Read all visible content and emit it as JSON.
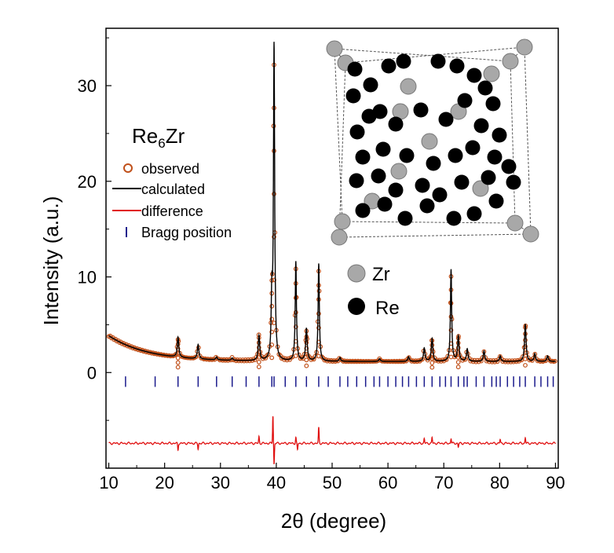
{
  "chart_data": {
    "type": "line",
    "compound": {
      "base": "Re",
      "sub": "6",
      "tail": "Zr"
    },
    "xlabel": "2θ (degree)",
    "ylabel": "Intensity (a.u.)",
    "xlim": [
      9.5,
      90.5
    ],
    "ylim": [
      -10,
      36
    ],
    "x_ticks": [
      "10",
      "20",
      "30",
      "40",
      "50",
      "60",
      "70",
      "80",
      "90"
    ],
    "y_ticks": [
      "0",
      "10",
      "20",
      "30"
    ],
    "x_tick_values": [
      10,
      20,
      30,
      40,
      50,
      60,
      70,
      80,
      90
    ],
    "y_tick_values": [
      0,
      10,
      20,
      30
    ],
    "legend": {
      "observed": "observed",
      "calculated": "calculated",
      "difference": "difference",
      "bragg": "Bragg position"
    },
    "background": {
      "type": "exp_decay",
      "b0": 1.15,
      "amp": 2.7,
      "decay": 7.0,
      "x0": 10
    },
    "peaks": [
      {
        "x": 22.4,
        "h": 2.1
      },
      {
        "x": 26.0,
        "h": 1.5
      },
      {
        "x": 29.3,
        "h": 0.3
      },
      {
        "x": 32.1,
        "h": 0.25
      },
      {
        "x": 36.9,
        "h": 2.6
      },
      {
        "x": 39.2,
        "h": 6.0
      },
      {
        "x": 39.6,
        "h": 32.8
      },
      {
        "x": 43.5,
        "h": 10.4
      },
      {
        "x": 45.4,
        "h": 3.4
      },
      {
        "x": 47.6,
        "h": 10.2
      },
      {
        "x": 51.4,
        "h": 0.4
      },
      {
        "x": 58.5,
        "h": 0.3
      },
      {
        "x": 63.7,
        "h": 0.5
      },
      {
        "x": 66.5,
        "h": 1.4
      },
      {
        "x": 67.9,
        "h": 2.4
      },
      {
        "x": 71.3,
        "h": 9.6
      },
      {
        "x": 72.6,
        "h": 2.6
      },
      {
        "x": 74.2,
        "h": 1.3
      },
      {
        "x": 77.2,
        "h": 1.1
      },
      {
        "x": 80.1,
        "h": 0.6
      },
      {
        "x": 84.6,
        "h": 3.9
      },
      {
        "x": 86.3,
        "h": 0.8
      },
      {
        "x": 88.6,
        "h": 0.6
      }
    ],
    "difference_baseline": -7.4,
    "difference_spikes": [
      {
        "x": 22.4,
        "d": -0.7
      },
      {
        "x": 26.0,
        "d": -0.6
      },
      {
        "x": 36.9,
        "d": 0.7
      },
      {
        "x": 39.4,
        "d": 2.9
      },
      {
        "x": 39.6,
        "d": -2.2
      },
      {
        "x": 43.5,
        "d": 0.6
      },
      {
        "x": 43.8,
        "d": -0.7
      },
      {
        "x": 47.6,
        "d": 1.6
      },
      {
        "x": 66.5,
        "d": 0.5
      },
      {
        "x": 67.9,
        "d": 0.6
      },
      {
        "x": 71.3,
        "d": 0.5
      },
      {
        "x": 72.6,
        "d": -0.4
      },
      {
        "x": 80.1,
        "d": 0.4
      },
      {
        "x": 84.6,
        "d": 0.6
      }
    ],
    "bragg_positions": [
      13.0,
      18.3,
      22.4,
      26.0,
      29.3,
      32.1,
      34.6,
      36.9,
      39.2,
      39.6,
      41.6,
      43.5,
      45.4,
      47.6,
      49.3,
      51.4,
      52.8,
      54.4,
      56.0,
      57.5,
      58.5,
      60.0,
      61.4,
      62.6,
      63.7,
      65.1,
      66.5,
      67.9,
      69.3,
      70.3,
      71.3,
      72.6,
      73.6,
      74.2,
      75.8,
      77.2,
      78.6,
      79.4,
      80.1,
      81.4,
      82.5,
      83.6,
      84.6,
      86.3,
      87.4,
      88.6,
      89.6
    ],
    "colors": {
      "observed": "#c0501a",
      "calculated": "#000000",
      "difference": "#e01010",
      "bragg": "#1a1a8c",
      "axis": "#000000"
    }
  },
  "inset": {
    "legend": {
      "zr": "Zr",
      "re": "Re"
    },
    "zr_color": "#a8a8a8",
    "re_color": "#000000"
  }
}
